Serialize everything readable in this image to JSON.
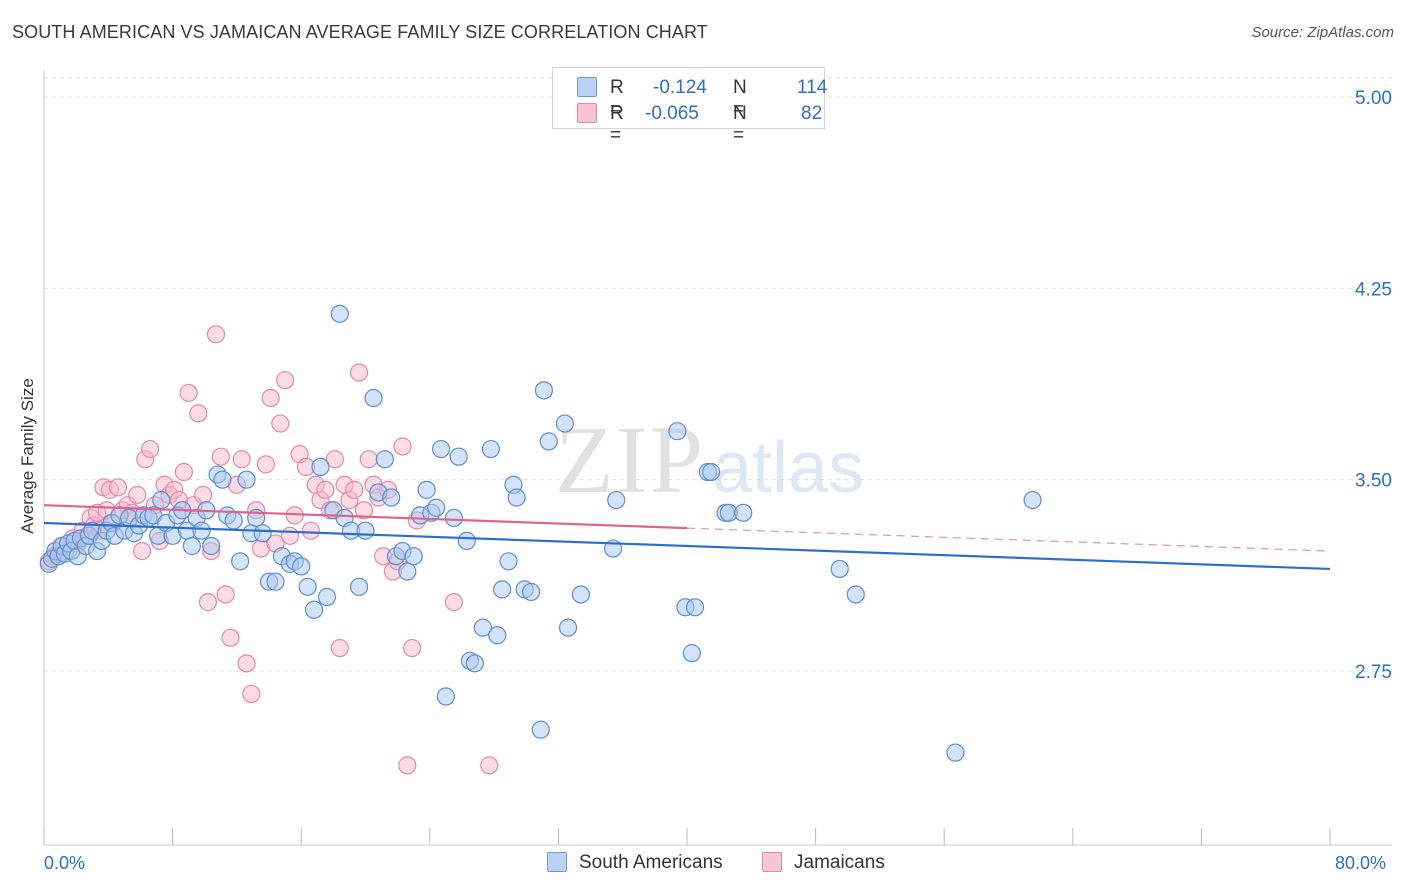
{
  "title": "SOUTH AMERICAN VS JAMAICAN AVERAGE FAMILY SIZE CORRELATION CHART",
  "source": "Source: ZipAtlas.com",
  "watermark": {
    "zip": "ZIP",
    "atlas": "atlas"
  },
  "legend": {
    "r_label": "R =",
    "n_label": "N =",
    "series": [
      {
        "name": "South Americans",
        "r": "-0.124",
        "n": "114"
      },
      {
        "name": "Jamaicans",
        "r": "-0.065",
        "n": "82"
      }
    ]
  },
  "colors": {
    "blue_fill": "#a9c8f0",
    "blue_stroke": "#5b8fd6",
    "blue_line": "#2c6fcf",
    "pink_fill": "#f7b8cb",
    "pink_stroke": "#e68aa7",
    "pink_line": "#e0628e",
    "axis_text": "#2a6fd1",
    "grid": "#dddddd"
  },
  "chart_data": {
    "type": "scatter",
    "title": "SOUTH AMERICAN VS JAMAICAN AVERAGE FAMILY SIZE CORRELATION CHART",
    "xlabel": "",
    "ylabel": "Average Family Size",
    "xlim": [
      0,
      80
    ],
    "ylim": [
      2.0,
      5.1
    ],
    "x_tick_labels": [
      "0.0%",
      "80.0%"
    ],
    "y_ticks": [
      2.75,
      3.5,
      4.25,
      5.0
    ],
    "y_tick_labels": [
      "2.75",
      "3.50",
      "4.25",
      "5.00"
    ],
    "legend_position": "top-center",
    "series": [
      {
        "name": "South Americans",
        "trend": {
          "x": [
            0,
            80
          ],
          "y": [
            3.33,
            3.15
          ],
          "style": "solid"
        },
        "points": [
          [
            0.3,
            3.17
          ],
          [
            0.5,
            3.19
          ],
          [
            0.7,
            3.22
          ],
          [
            0.9,
            3.2
          ],
          [
            1.1,
            3.24
          ],
          [
            1.3,
            3.21
          ],
          [
            1.5,
            3.25
          ],
          [
            1.7,
            3.22
          ],
          [
            1.9,
            3.26
          ],
          [
            2.1,
            3.2
          ],
          [
            2.3,
            3.27
          ],
          [
            2.6,
            3.24
          ],
          [
            2.8,
            3.28
          ],
          [
            3.0,
            3.3
          ],
          [
            3.3,
            3.22
          ],
          [
            3.6,
            3.26
          ],
          [
            3.9,
            3.3
          ],
          [
            4.2,
            3.33
          ],
          [
            4.4,
            3.28
          ],
          [
            4.7,
            3.36
          ],
          [
            5.0,
            3.3
          ],
          [
            5.3,
            3.35
          ],
          [
            5.6,
            3.29
          ],
          [
            5.9,
            3.32
          ],
          [
            6.2,
            3.36
          ],
          [
            6.5,
            3.35
          ],
          [
            6.8,
            3.36
          ],
          [
            7.1,
            3.28
          ],
          [
            7.3,
            3.42
          ],
          [
            7.6,
            3.33
          ],
          [
            8.0,
            3.28
          ],
          [
            8.3,
            3.36
          ],
          [
            8.6,
            3.38
          ],
          [
            8.9,
            3.3
          ],
          [
            9.2,
            3.24
          ],
          [
            9.5,
            3.35
          ],
          [
            9.8,
            3.3
          ],
          [
            10.1,
            3.38
          ],
          [
            10.4,
            3.24
          ],
          [
            10.8,
            3.52
          ],
          [
            11.1,
            3.5
          ],
          [
            11.4,
            3.36
          ],
          [
            11.8,
            3.34
          ],
          [
            12.2,
            3.18
          ],
          [
            12.6,
            3.5
          ],
          [
            12.9,
            3.29
          ],
          [
            13.2,
            3.35
          ],
          [
            13.6,
            3.29
          ],
          [
            14.0,
            3.1
          ],
          [
            14.4,
            3.1
          ],
          [
            14.8,
            3.2
          ],
          [
            15.3,
            3.17
          ],
          [
            15.6,
            3.18
          ],
          [
            16.0,
            3.16
          ],
          [
            16.4,
            3.08
          ],
          [
            16.8,
            2.99
          ],
          [
            17.2,
            3.55
          ],
          [
            17.6,
            3.04
          ],
          [
            18.0,
            3.38
          ],
          [
            18.4,
            4.15
          ],
          [
            18.7,
            3.35
          ],
          [
            19.1,
            3.3
          ],
          [
            19.6,
            3.08
          ],
          [
            20.0,
            3.3
          ],
          [
            20.5,
            3.82
          ],
          [
            20.8,
            3.45
          ],
          [
            21.2,
            3.58
          ],
          [
            21.6,
            3.43
          ],
          [
            21.9,
            3.2
          ],
          [
            22.3,
            3.22
          ],
          [
            22.6,
            3.14
          ],
          [
            23.0,
            3.2
          ],
          [
            23.4,
            3.36
          ],
          [
            23.8,
            3.46
          ],
          [
            24.1,
            3.37
          ],
          [
            24.4,
            3.39
          ],
          [
            24.7,
            3.62
          ],
          [
            25.0,
            2.65
          ],
          [
            25.5,
            3.35
          ],
          [
            25.8,
            3.59
          ],
          [
            26.3,
            3.26
          ],
          [
            26.5,
            2.79
          ],
          [
            26.8,
            2.78
          ],
          [
            27.3,
            2.92
          ],
          [
            27.8,
            3.62
          ],
          [
            28.2,
            2.89
          ],
          [
            28.5,
            3.07
          ],
          [
            28.9,
            3.18
          ],
          [
            29.2,
            3.48
          ],
          [
            29.4,
            3.43
          ],
          [
            29.9,
            3.07
          ],
          [
            30.3,
            3.06
          ],
          [
            30.9,
            2.52
          ],
          [
            31.1,
            3.85
          ],
          [
            31.4,
            3.65
          ],
          [
            32.4,
            3.72
          ],
          [
            32.6,
            2.92
          ],
          [
            33.4,
            3.05
          ],
          [
            35.4,
            3.23
          ],
          [
            35.6,
            3.42
          ],
          [
            39.4,
            3.69
          ],
          [
            39.9,
            3.0
          ],
          [
            40.3,
            2.82
          ],
          [
            40.5,
            3.0
          ],
          [
            41.3,
            3.53
          ],
          [
            41.5,
            3.53
          ],
          [
            42.4,
            3.37
          ],
          [
            42.6,
            3.37
          ],
          [
            43.5,
            3.37
          ],
          [
            49.5,
            3.15
          ],
          [
            50.5,
            3.05
          ],
          [
            56.7,
            2.43
          ],
          [
            61.5,
            3.42
          ]
        ]
      },
      {
        "name": "Jamaicans",
        "trend": {
          "x": [
            0,
            40,
            80
          ],
          "y": [
            3.4,
            3.31,
            3.22
          ],
          "style": "solid-then-dashed",
          "solid_until": 40
        },
        "points": [
          [
            0.3,
            3.18
          ],
          [
            0.6,
            3.2
          ],
          [
            0.9,
            3.21
          ],
          [
            1.2,
            3.24
          ],
          [
            1.5,
            3.22
          ],
          [
            1.8,
            3.27
          ],
          [
            2.1,
            3.25
          ],
          [
            2.4,
            3.3
          ],
          [
            2.7,
            3.28
          ],
          [
            2.9,
            3.35
          ],
          [
            3.1,
            3.32
          ],
          [
            3.3,
            3.37
          ],
          [
            3.5,
            3.3
          ],
          [
            3.7,
            3.47
          ],
          [
            3.9,
            3.38
          ],
          [
            4.1,
            3.46
          ],
          [
            4.3,
            3.33
          ],
          [
            4.6,
            3.47
          ],
          [
            4.9,
            3.38
          ],
          [
            5.2,
            3.4
          ],
          [
            5.5,
            3.37
          ],
          [
            5.8,
            3.44
          ],
          [
            6.1,
            3.22
          ],
          [
            6.3,
            3.58
          ],
          [
            6.6,
            3.62
          ],
          [
            6.9,
            3.4
          ],
          [
            7.2,
            3.26
          ],
          [
            7.5,
            3.48
          ],
          [
            7.8,
            3.44
          ],
          [
            8.1,
            3.46
          ],
          [
            8.4,
            3.42
          ],
          [
            8.7,
            3.53
          ],
          [
            9.0,
            3.84
          ],
          [
            9.3,
            3.4
          ],
          [
            9.6,
            3.76
          ],
          [
            9.9,
            3.44
          ],
          [
            10.2,
            3.02
          ],
          [
            10.4,
            3.22
          ],
          [
            10.7,
            4.07
          ],
          [
            11.0,
            3.59
          ],
          [
            11.3,
            3.05
          ],
          [
            11.6,
            2.88
          ],
          [
            12.0,
            3.48
          ],
          [
            12.3,
            3.58
          ],
          [
            12.6,
            2.78
          ],
          [
            12.9,
            2.66
          ],
          [
            13.2,
            3.38
          ],
          [
            13.5,
            3.23
          ],
          [
            13.8,
            3.56
          ],
          [
            14.1,
            3.82
          ],
          [
            14.4,
            3.25
          ],
          [
            14.7,
            3.72
          ],
          [
            15.0,
            3.89
          ],
          [
            15.3,
            3.28
          ],
          [
            15.6,
            3.36
          ],
          [
            15.9,
            3.6
          ],
          [
            16.3,
            3.55
          ],
          [
            16.6,
            3.3
          ],
          [
            16.9,
            3.48
          ],
          [
            17.2,
            3.42
          ],
          [
            17.5,
            3.46
          ],
          [
            17.8,
            3.38
          ],
          [
            18.1,
            3.58
          ],
          [
            18.4,
            2.84
          ],
          [
            18.7,
            3.48
          ],
          [
            19.0,
            3.42
          ],
          [
            19.3,
            3.46
          ],
          [
            19.6,
            3.92
          ],
          [
            19.9,
            3.38
          ],
          [
            20.2,
            3.58
          ],
          [
            20.5,
            3.48
          ],
          [
            20.8,
            3.43
          ],
          [
            21.1,
            3.2
          ],
          [
            21.4,
            3.46
          ],
          [
            21.7,
            3.14
          ],
          [
            22.0,
            3.18
          ],
          [
            22.3,
            3.63
          ],
          [
            22.6,
            2.38
          ],
          [
            22.9,
            2.84
          ],
          [
            23.2,
            3.34
          ],
          [
            25.5,
            3.02
          ],
          [
            27.7,
            2.38
          ]
        ]
      }
    ]
  }
}
